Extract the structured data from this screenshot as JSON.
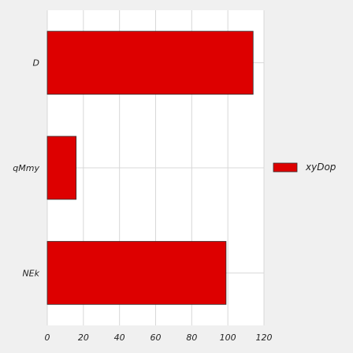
{
  "chart_data": {
    "type": "bar",
    "orientation": "horizontal",
    "categories": [
      "D",
      "qMmy",
      "NEk"
    ],
    "series": [
      {
        "name": "xyDop",
        "values": [
          114,
          16,
          99
        ],
        "color": "#dd0000"
      }
    ],
    "xlim": [
      0,
      120
    ],
    "xticks": [
      0,
      20,
      40,
      60,
      80,
      100,
      120
    ],
    "title": "",
    "xlabel": "",
    "ylabel": "",
    "grid": true,
    "legend": "right"
  }
}
